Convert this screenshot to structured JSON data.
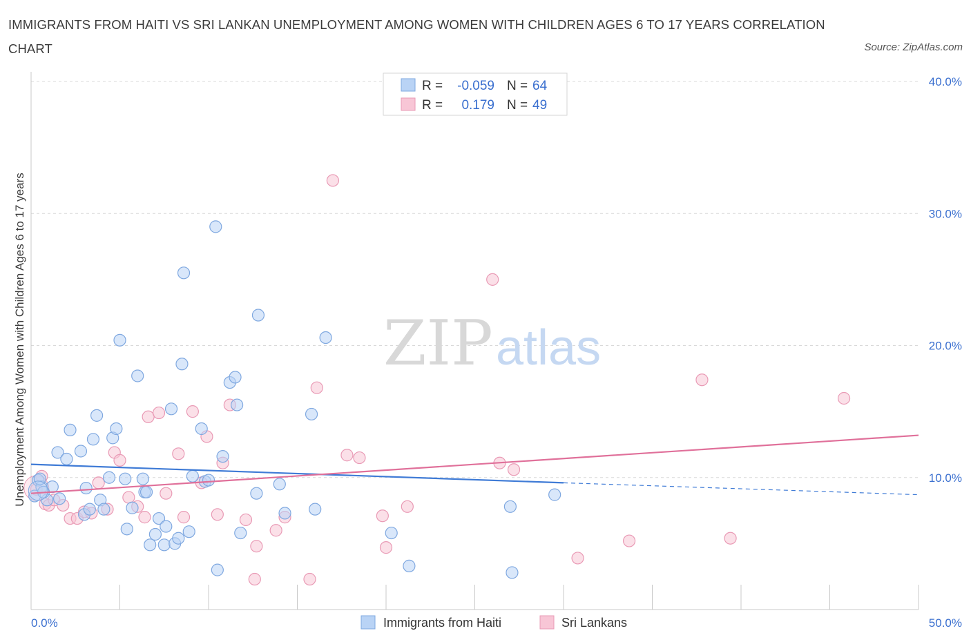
{
  "title": "IMMIGRANTS FROM HAITI VS SRI LANKAN UNEMPLOYMENT AMONG WOMEN WITH CHILDREN AGES 6 TO 17 YEARS CORRELATION CHART",
  "source": "Source: ZipAtlas.com",
  "watermark": {
    "zip": "ZIP",
    "atlas": "atlas"
  },
  "legend_box": {
    "rows": [
      {
        "r_label": "R =",
        "r_value": "-0.059",
        "n_label": "N =",
        "n_value": "64"
      },
      {
        "r_label": "R =",
        "r_value": "0.179",
        "n_label": "N =",
        "n_value": "49"
      }
    ]
  },
  "bottom_legend": [
    "Immigrants from Haiti",
    "Sri Lankans"
  ],
  "colors": {
    "haiti_fill": "#b9d3f5",
    "haiti_stroke": "#7fa8e0",
    "haiti_line": "#3f7bd6",
    "sri_fill": "#f8c6d6",
    "sri_stroke": "#e99ab5",
    "sri_line": "#e0709a",
    "grid": "#d9d9d9",
    "axis_text": "#3a6fcf"
  },
  "chart_data": {
    "type": "scatter",
    "title": "IMMIGRANTS FROM HAITI VS SRI LANKAN UNEMPLOYMENT AMONG WOMEN WITH CHILDREN AGES 6 TO 17 YEARS CORRELATION CHART",
    "xlabel": "",
    "ylabel": "Unemployment Among Women with Children Ages 6 to 17 years",
    "xlim": [
      0,
      50
    ],
    "ylim": [
      0,
      40
    ],
    "x_tick_labels": [
      "0.0%",
      "50.0%"
    ],
    "y_ticks": [
      10,
      20,
      30,
      40
    ],
    "y_tick_labels": [
      "10.0%",
      "20.0%",
      "30.0%",
      "40.0%"
    ],
    "grid": true,
    "legend_position": "top-center",
    "series": [
      {
        "name": "Immigrants from Haiti",
        "color": "#b9d3f5",
        "r": -0.059,
        "n": 64,
        "trend": {
          "x": [
            0,
            30
          ],
          "y": [
            11.0,
            9.6
          ],
          "dashed_to": [
            50,
            8.7
          ]
        },
        "points": [
          [
            0.2,
            8.6
          ],
          [
            0.4,
            9.8
          ],
          [
            0.6,
            9.3
          ],
          [
            0.9,
            8.3
          ],
          [
            1.2,
            9.3
          ],
          [
            1.5,
            11.9
          ],
          [
            1.6,
            8.4
          ],
          [
            2.0,
            11.4
          ],
          [
            2.2,
            13.6
          ],
          [
            2.8,
            12.0
          ],
          [
            3.0,
            7.2
          ],
          [
            3.1,
            9.2
          ],
          [
            3.3,
            7.6
          ],
          [
            3.5,
            12.9
          ],
          [
            3.7,
            14.7
          ],
          [
            3.9,
            8.3
          ],
          [
            4.1,
            7.6
          ],
          [
            4.4,
            10.0
          ],
          [
            4.6,
            13.0
          ],
          [
            4.8,
            13.7
          ],
          [
            5.0,
            20.4
          ],
          [
            5.3,
            9.9
          ],
          [
            5.4,
            6.1
          ],
          [
            5.7,
            7.7
          ],
          [
            6.0,
            17.7
          ],
          [
            6.3,
            9.9
          ],
          [
            6.4,
            8.9
          ],
          [
            6.5,
            8.9
          ],
          [
            6.7,
            4.9
          ],
          [
            7.0,
            5.7
          ],
          [
            7.2,
            6.9
          ],
          [
            7.5,
            4.9
          ],
          [
            7.6,
            6.3
          ],
          [
            7.9,
            15.2
          ],
          [
            8.1,
            5.0
          ],
          [
            8.3,
            5.4
          ],
          [
            8.5,
            18.6
          ],
          [
            8.6,
            25.5
          ],
          [
            8.9,
            5.9
          ],
          [
            9.1,
            10.1
          ],
          [
            9.6,
            13.7
          ],
          [
            9.8,
            9.7
          ],
          [
            10.0,
            9.8
          ],
          [
            10.4,
            29.0
          ],
          [
            10.5,
            3.0
          ],
          [
            10.8,
            11.6
          ],
          [
            11.2,
            17.2
          ],
          [
            11.5,
            17.6
          ],
          [
            11.6,
            15.5
          ],
          [
            11.8,
            5.8
          ],
          [
            12.7,
            8.8
          ],
          [
            12.8,
            22.3
          ],
          [
            14.0,
            9.5
          ],
          [
            14.3,
            7.3
          ],
          [
            15.8,
            14.8
          ],
          [
            16.0,
            7.6
          ],
          [
            16.6,
            20.6
          ],
          [
            20.3,
            5.8
          ],
          [
            21.3,
            3.3
          ],
          [
            27.0,
            7.8
          ],
          [
            27.1,
            2.8
          ],
          [
            29.5,
            8.7
          ],
          [
            0.5,
            9.9
          ],
          [
            0.7,
            8.9
          ]
        ]
      },
      {
        "name": "Sri Lankans",
        "color": "#f8c6d6",
        "r": 0.179,
        "n": 49,
        "trend": {
          "x": [
            0,
            50
          ],
          "y": [
            8.8,
            13.2
          ]
        },
        "points": [
          [
            0.3,
            9.1
          ],
          [
            0.6,
            10.1
          ],
          [
            0.8,
            8.0
          ],
          [
            1.0,
            7.9
          ],
          [
            1.3,
            8.3
          ],
          [
            1.8,
            7.9
          ],
          [
            2.2,
            6.9
          ],
          [
            2.6,
            6.9
          ],
          [
            3.0,
            7.4
          ],
          [
            3.4,
            7.3
          ],
          [
            3.8,
            9.6
          ],
          [
            4.3,
            7.6
          ],
          [
            4.7,
            11.9
          ],
          [
            5.0,
            11.3
          ],
          [
            5.5,
            8.5
          ],
          [
            6.0,
            7.8
          ],
          [
            6.4,
            7.0
          ],
          [
            6.6,
            14.6
          ],
          [
            7.2,
            14.9
          ],
          [
            7.6,
            8.8
          ],
          [
            8.3,
            11.8
          ],
          [
            8.6,
            7.0
          ],
          [
            9.1,
            15.0
          ],
          [
            9.6,
            9.6
          ],
          [
            9.9,
            13.1
          ],
          [
            10.5,
            7.2
          ],
          [
            10.8,
            11.1
          ],
          [
            11.2,
            15.5
          ],
          [
            12.1,
            6.8
          ],
          [
            12.6,
            2.3
          ],
          [
            12.7,
            4.8
          ],
          [
            13.8,
            6.0
          ],
          [
            14.3,
            7.0
          ],
          [
            15.7,
            2.3
          ],
          [
            16.1,
            16.8
          ],
          [
            17.0,
            32.5
          ],
          [
            17.8,
            11.7
          ],
          [
            18.5,
            11.5
          ],
          [
            19.8,
            7.1
          ],
          [
            20.0,
            4.7
          ],
          [
            21.2,
            7.8
          ],
          [
            26.0,
            25.0
          ],
          [
            26.4,
            11.1
          ],
          [
            27.2,
            10.6
          ],
          [
            30.8,
            3.9
          ],
          [
            33.7,
            5.2
          ],
          [
            37.8,
            17.4
          ],
          [
            39.4,
            5.4
          ],
          [
            45.8,
            16.0
          ]
        ]
      }
    ]
  }
}
